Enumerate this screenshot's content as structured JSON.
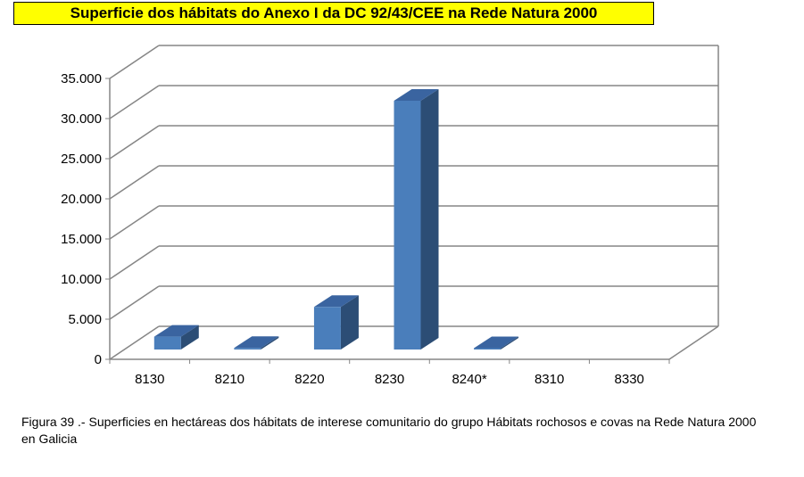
{
  "chart_data": {
    "type": "bar",
    "title": "Superficie dos hábitats do Anexo I da DC 92/43/CEE na Rede Natura 2000",
    "categories": [
      "8130",
      "8210",
      "8220",
      "8230",
      "8240*",
      "8310",
      "8330"
    ],
    "values": [
      1600,
      200,
      5300,
      31000,
      50,
      0,
      0
    ],
    "ylim": [
      0,
      35000
    ],
    "yticks": [
      0,
      5000,
      10000,
      15000,
      20000,
      25000,
      30000,
      35000
    ],
    "ytick_labels": [
      "0",
      "5.000",
      "10.000",
      "15.000",
      "20.000",
      "25.000",
      "30.000",
      "35.000"
    ],
    "xlabel": "",
    "ylabel": "",
    "grid": true,
    "style": "3d-column",
    "colors": {
      "bar_front": "#4a7ebb",
      "bar_side": "#2c4d75",
      "bar_top": "#3a64a0",
      "grid": "#868686"
    }
  },
  "caption": "Figura 39 .- Superficies en hectáreas dos hábitats de interese comunitario do grupo Hábitats rochosos e covas na Rede Natura 2000 en Galicia"
}
